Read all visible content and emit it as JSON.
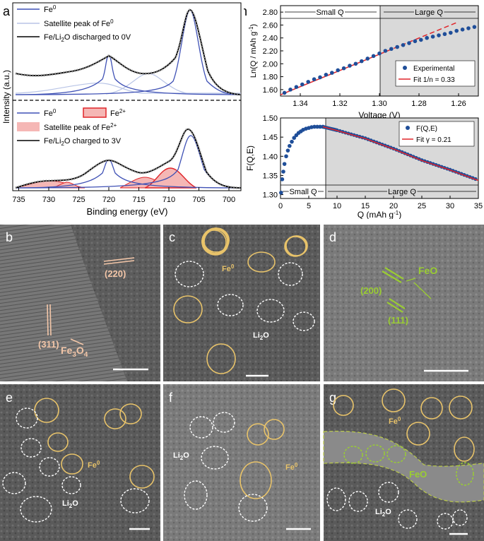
{
  "colors": {
    "fe0_blue": "#3f51b5",
    "fe0_sat": "#b8c4e6",
    "fe2_red": "#e0252a",
    "fe2_fill": "#f5b7b5",
    "envelope": "#000000",
    "raw_circles": "#a9a9a9",
    "exp_dots": "#1f4e99",
    "fit_red": "#e0252a",
    "shade": "#d9d9d9",
    "fe_particle": "#e8c36a",
    "li2o_particle": "#ffffff",
    "feo_particle": "#9acd32",
    "fe3o4_label": "#f3c6a8"
  },
  "panel_a": {
    "letter": "a",
    "y_axis_label": "Intensity (a.u.)",
    "x_axis_label": "Binding energy (eV)",
    "x_ticks": [
      "735",
      "730",
      "725",
      "720",
      "715",
      "710",
      "705",
      "700"
    ],
    "top_legend": [
      {
        "text": "Fe",
        "sup": "0",
        "style": "fe0"
      },
      {
        "text": "Satellite peak of Fe",
        "sup": "0",
        "style": "fe0_sat"
      },
      {
        "text": "Fe/Li",
        "sub": "2",
        "tail": "O discharged to 0V",
        "style": "envelope"
      }
    ],
    "bottom_legend": [
      {
        "text": "Fe",
        "sup": "0",
        "style": "fe0"
      },
      {
        "text": "Fe",
        "sup": "2+",
        "style": "fe2"
      },
      {
        "text": "Satellite peak of Fe",
        "sup": "2+",
        "style": "fe2_sat"
      },
      {
        "text": "Fe/Li",
        "sub": "2",
        "tail": "O charged to 3V",
        "style": "envelope"
      }
    ]
  },
  "panel_h": {
    "letter": "h",
    "top": {
      "ylabel": "Ln(Q / mAh g",
      "ylabel_sup": "-1",
      "ylabel_tail": ")",
      "xlabel": "Voltage (V)",
      "region_left": "Small Q",
      "region_right": "Large Q",
      "legend": [
        "Experimental",
        "Fit 1/n = 0.33"
      ]
    },
    "bottom": {
      "ylabel": "F(Q,E)",
      "xlabel": "Q (mAh g",
      "xlabel_sup": "-1",
      "xlabel_tail": ")",
      "region_left": "Small Q",
      "region_right": "Large Q",
      "legend": [
        "F(Q,E)",
        "Fit γ = 0.21"
      ]
    }
  },
  "chart_data": [
    {
      "type": "line",
      "title": "",
      "xlabel": "Binding energy (eV)",
      "ylabel": "Intensity (a.u.)",
      "xlim": [
        736,
        698
      ],
      "x_ticks": [
        735,
        730,
        725,
        720,
        715,
        710,
        705,
        700
      ],
      "series": [
        {
          "name": "Fe0",
          "peaks_eV": [
            720,
            706.8
          ]
        },
        {
          "name": "Satellite peak of Fe0",
          "peaks_eV": [
            726,
            714
          ]
        },
        {
          "name": "Fe/Li2O discharged to 0V",
          "x": [
            736,
            730,
            726,
            722,
            720,
            717,
            714,
            711,
            709,
            707,
            706.8,
            704,
            701,
            698
          ],
          "y": [
            0.22,
            0.3,
            0.36,
            0.52,
            0.62,
            0.46,
            0.4,
            0.5,
            0.78,
            1.0,
            1.0,
            0.62,
            0.18,
            0.06
          ]
        },
        {
          "name": "Fe0",
          "peaks_eV": [
            720,
            706.8
          ]
        },
        {
          "name": "Fe2+",
          "peaks_eV": [
            710,
            724
          ]
        },
        {
          "name": "Satellite peak of Fe2+",
          "peaks_eV": [
            729.5,
            715
          ]
        },
        {
          "name": "Fe/Li2O charged to 3V",
          "x": [
            736,
            730,
            726,
            722,
            720,
            717,
            714,
            711,
            709,
            707,
            706.8,
            704,
            701,
            698
          ],
          "y": [
            0.05,
            0.2,
            0.24,
            0.5,
            0.68,
            0.5,
            0.52,
            0.7,
            0.88,
            1.0,
            1.0,
            0.62,
            0.18,
            0.05
          ]
        }
      ]
    },
    {
      "type": "scatter",
      "title": "",
      "xlabel": "Voltage (V)",
      "ylabel": "Ln(Q / mAh g-1)",
      "xlim": [
        1.35,
        1.25
      ],
      "ylim": [
        1.5,
        2.9
      ],
      "x_ticks": [
        1.34,
        1.32,
        1.3,
        1.28,
        1.26
      ],
      "y_ticks": [
        1.6,
        1.8,
        2.0,
        2.2,
        2.4,
        2.6,
        2.8
      ],
      "series": [
        {
          "name": "Experimental",
          "x": [
            1.348,
            1.345,
            1.342,
            1.339,
            1.336,
            1.333,
            1.33,
            1.327,
            1.324,
            1.321,
            1.318,
            1.315,
            1.312,
            1.309,
            1.306,
            1.303,
            1.3,
            1.297,
            1.294,
            1.291,
            1.288,
            1.285,
            1.282,
            1.279,
            1.276,
            1.273,
            1.27,
            1.267,
            1.264,
            1.261,
            1.258,
            1.255,
            1.252
          ],
          "y": [
            1.55,
            1.6,
            1.64,
            1.68,
            1.72,
            1.76,
            1.79,
            1.83,
            1.86,
            1.9,
            1.93,
            1.97,
            2.0,
            2.04,
            2.08,
            2.12,
            2.16,
            2.2,
            2.23,
            2.26,
            2.29,
            2.32,
            2.35,
            2.37,
            2.4,
            2.42,
            2.44,
            2.46,
            2.48,
            2.51,
            2.53,
            2.55,
            2.57
          ]
        },
        {
          "name": "Fit 1/n = 0.33",
          "x": [
            1.35,
            1.26
          ],
          "y": [
            1.52,
            2.65
          ]
        }
      ],
      "split_x": 1.3
    },
    {
      "type": "scatter",
      "title": "",
      "xlabel": "Q (mAh g-1)",
      "ylabel": "F(Q,E)",
      "xlim": [
        0,
        35
      ],
      "ylim": [
        1.29,
        1.5
      ],
      "x_ticks": [
        0,
        5,
        10,
        15,
        20,
        25,
        30,
        35
      ],
      "y_ticks": [
        1.3,
        1.35,
        1.4,
        1.45,
        1.5
      ],
      "series": [
        {
          "name": "F(Q,E)",
          "x": [
            0.1,
            0.3,
            0.5,
            0.7,
            1.0,
            1.3,
            1.6,
            2.0,
            2.4,
            2.8,
            3.2,
            3.6,
            4.0,
            4.5,
            5.0,
            5.5,
            6.0,
            6.5,
            7.0,
            7.5
          ],
          "y": [
            1.305,
            1.34,
            1.36,
            1.38,
            1.4,
            1.415,
            1.427,
            1.438,
            1.448,
            1.455,
            1.461,
            1.465,
            1.469,
            1.472,
            1.474,
            1.476,
            1.477,
            1.477,
            1.477,
            1.477
          ]
        },
        {
          "name": "F(Q,E)",
          "x": [
            7.5,
            10,
            15,
            20,
            25,
            30,
            35
          ],
          "y": [
            1.477,
            1.468,
            1.447,
            1.42,
            1.39,
            1.365,
            1.338
          ]
        },
        {
          "name": "Fit γ = 0.21",
          "x": [
            7.5,
            10,
            15,
            20,
            25,
            30,
            35
          ],
          "y": [
            1.477,
            1.467,
            1.446,
            1.419,
            1.389,
            1.364,
            1.337
          ]
        }
      ],
      "split_x": 7.8
    }
  ],
  "tem": {
    "b": {
      "letter": "b",
      "labels": [
        "(220)",
        "(311)"
      ],
      "phase_main": "Fe",
      "phase_sub1": "3",
      "phase_mid": "O",
      "phase_sub2": "4"
    },
    "c": {
      "letter": "c",
      "fe": "Fe",
      "fe_sup": "0",
      "li": "Li",
      "li_sub": "2",
      "li_tail": "O"
    },
    "d": {
      "letter": "d",
      "labels": [
        "FeO",
        "(200)",
        "(111)"
      ]
    },
    "e": {
      "letter": "e",
      "fe": "Fe",
      "fe_sup": "0",
      "li": "Li",
      "li_sub": "2",
      "li_tail": "O"
    },
    "f": {
      "letter": "f",
      "fe": "Fe",
      "fe_sup": "0",
      "li": "Li",
      "li_sub": "2",
      "li_tail": "O"
    },
    "g": {
      "letter": "g",
      "fe": "Fe",
      "fe_sup": "0",
      "feo": "FeO",
      "li": "Li",
      "li_sub": "2",
      "li_tail": "O"
    }
  }
}
